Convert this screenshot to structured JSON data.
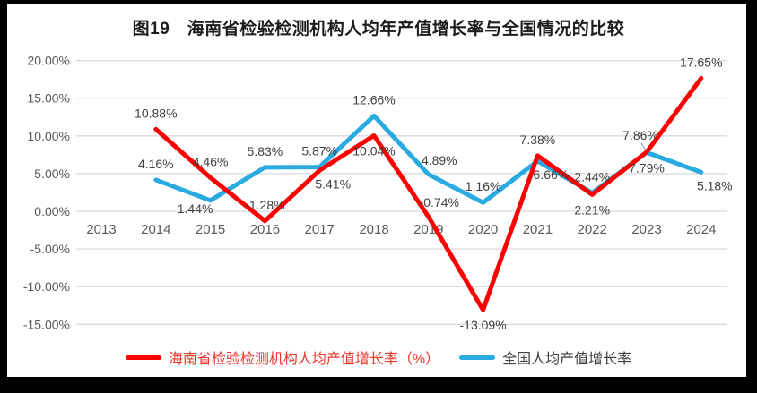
{
  "title": "图19　海南省检验检测机构人均年产值增长率与全国情况的比较",
  "chart_data": {
    "type": "line",
    "categories": [
      "2013",
      "2014",
      "2015",
      "2016",
      "2017",
      "2018",
      "2019",
      "2020",
      "2021",
      "2022",
      "2023",
      "2024"
    ],
    "series": [
      {
        "name": "海南省检验检测机构人均产值增长率（%）",
        "color": "#FF0000",
        "legend_text_color": "#E8372C",
        "values": [
          null,
          10.88,
          4.46,
          -1.28,
          5.41,
          10.04,
          -0.74,
          -13.09,
          7.38,
          2.21,
          7.86,
          17.65
        ],
        "data_labels": [
          "",
          "10.88%",
          "4.46%",
          "-1.28%",
          "5.41%",
          "10.04%",
          "-0.74%",
          "-13.09%",
          "7.38%",
          "2.21%",
          "7.86%",
          "17.65%"
        ],
        "label_positions": [
          null,
          "above",
          "above",
          "above",
          "below-right",
          "below",
          "above-right",
          "below",
          "above",
          "below",
          "above-leader",
          "above"
        ]
      },
      {
        "name": "全国人均产值增长率",
        "color": "#29ABE2",
        "legend_text_color": "#404040",
        "values": [
          null,
          4.16,
          1.44,
          5.83,
          5.87,
          12.66,
          4.89,
          1.16,
          6.66,
          2.44,
          7.79,
          5.18
        ],
        "data_labels": [
          "",
          "4.16%",
          "1.44%",
          "5.83%",
          "5.87%",
          "12.66%",
          "4.89%",
          "1.16%",
          "6.66%",
          "2.44%",
          "7.79%",
          "5.18%"
        ],
        "label_positions": [
          null,
          "above",
          "below-left",
          "above",
          "above",
          "above",
          "above-right",
          "above",
          "below-right",
          "above",
          "below",
          "below-right"
        ]
      }
    ],
    "ylim": [
      -15,
      20
    ],
    "yticks": [
      20,
      15,
      10,
      5,
      0,
      -5,
      -10,
      -15
    ],
    "ytick_labels": [
      "20.00%",
      "15.00%",
      "10.00%",
      "5.00%",
      "0.00%",
      "-5.00%",
      "-10.00%",
      "-15.00%"
    ],
    "grid": true,
    "legend_position": "bottom",
    "colors": {
      "gridline": "#D9D9D9",
      "axis_text": "#595959",
      "data_label": "#3F3F3F",
      "leader_line": "#A6A6A6",
      "title_text": "#1C1C1C",
      "background": "#FFFFFF",
      "photo_border": "#000000"
    }
  }
}
